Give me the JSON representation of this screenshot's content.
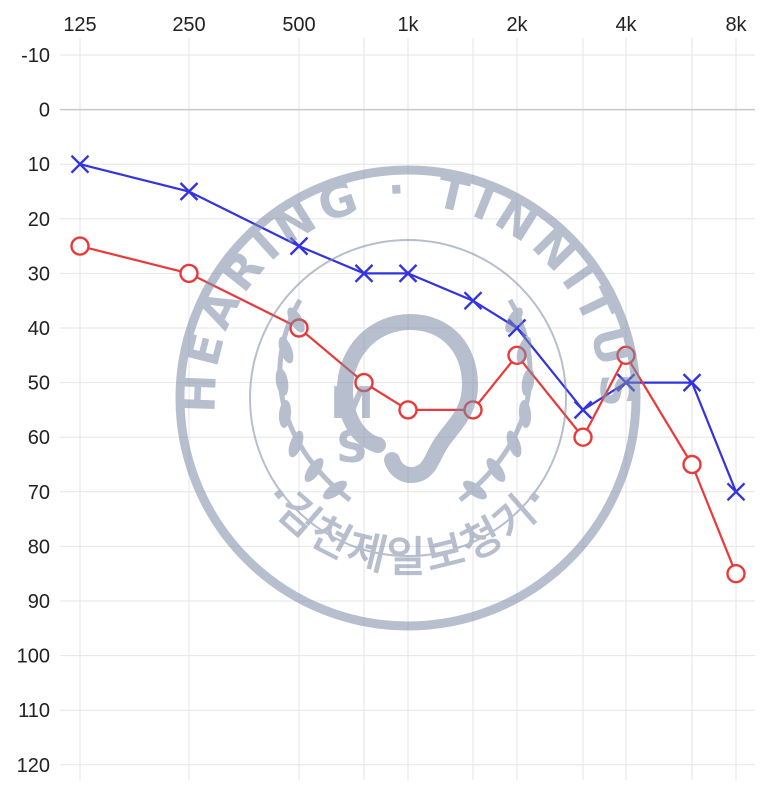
{
  "chart_data": {
    "type": "line",
    "x_ticks": [
      "125",
      "250",
      "500",
      "1k",
      "2k",
      "4k",
      "8k"
    ],
    "x_positions": [
      "125",
      "250",
      "500",
      "750",
      "1k",
      "1.5k",
      "2k",
      "3k",
      "4k",
      "6k",
      "8k"
    ],
    "y_ticks": [
      "-10",
      "0",
      "10",
      "20",
      "30",
      "40",
      "50",
      "60",
      "70",
      "80",
      "90",
      "100",
      "110",
      "120"
    ],
    "ylim": [
      -10,
      120
    ],
    "y_inverted": true,
    "series": [
      {
        "color": "#3333e0",
        "marker": "x",
        "points": [
          {
            "x": "125",
            "y": 10
          },
          {
            "x": "250",
            "y": 15
          },
          {
            "x": "500",
            "y": 25
          },
          {
            "x": "750",
            "y": 30
          },
          {
            "x": "1k",
            "y": 30
          },
          {
            "x": "1.5k",
            "y": 35
          },
          {
            "x": "2k",
            "y": 40
          },
          {
            "x": "3k",
            "y": 55
          },
          {
            "x": "4k",
            "y": 50
          },
          {
            "x": "6k",
            "y": 50
          },
          {
            "x": "8k",
            "y": 70
          }
        ]
      },
      {
        "color": "#e83a3a",
        "marker": "o",
        "points": [
          {
            "x": "125",
            "y": 25
          },
          {
            "x": "250",
            "y": 30
          },
          {
            "x": "500",
            "y": 40
          },
          {
            "x": "750",
            "y": 50
          },
          {
            "x": "1k",
            "y": 55
          },
          {
            "x": "1.5k",
            "y": 55
          },
          {
            "x": "2k",
            "y": 45
          },
          {
            "x": "3k",
            "y": 60
          },
          {
            "x": "4k",
            "y": 45
          },
          {
            "x": "6k",
            "y": 65
          },
          {
            "x": "8k",
            "y": 85
          }
        ]
      }
    ]
  },
  "watermark": {
    "top_text": "HEARING · TINNITUS",
    "bottom_text": "·김천제일보청기·",
    "monogram_m": "M",
    "monogram_s": "S",
    "color": "#7d8aa5"
  }
}
